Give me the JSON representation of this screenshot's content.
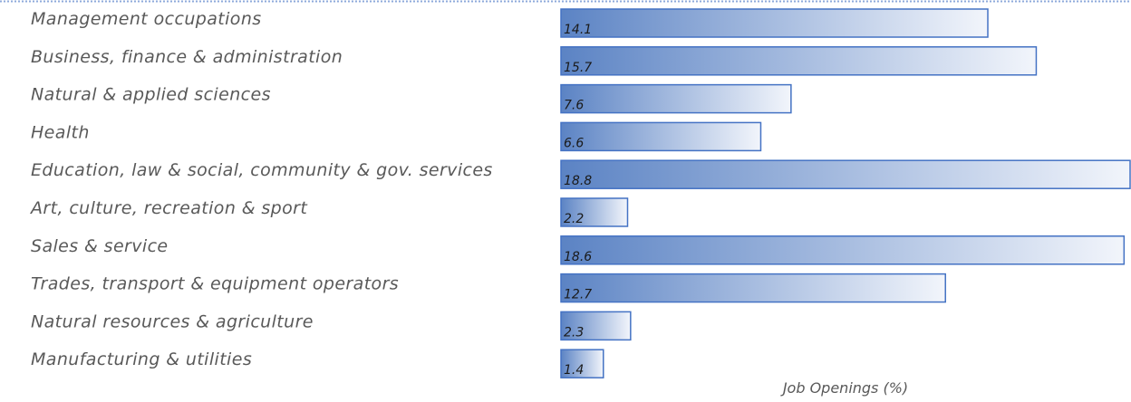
{
  "chart_data": {
    "type": "bar",
    "orientation": "horizontal",
    "title": "",
    "xlabel": "Job Openings (%)",
    "ylabel": "",
    "categories": [
      "Management occupations",
      "Business, finance & administration",
      "Natural & applied sciences",
      "Health",
      "Education, law & social, community & gov. services",
      "Art, culture, recreation & sport",
      "Sales & service",
      "Trades, transport & equipment operators",
      "Natural resources & agriculture",
      "Manufacturing & utilities"
    ],
    "values": [
      14.1,
      15.7,
      7.6,
      6.6,
      18.8,
      2.2,
      18.6,
      12.7,
      2.3,
      1.4
    ],
    "value_labels": [
      "14.1",
      "15.7",
      "7.6",
      "6.6",
      "18.8",
      "2.2",
      "18.6",
      "12.7",
      "2.3",
      "1.4"
    ],
    "xlim": [
      0,
      18.8
    ],
    "grid": false,
    "legend": "none",
    "colors": {
      "bar_start": "#5b83c4",
      "bar_end": "#f2f5fb",
      "bar_border": "#4472c4",
      "label_text": "#595959",
      "value_text": "#1a1a1a",
      "top_rule": "#8eaadb"
    }
  }
}
